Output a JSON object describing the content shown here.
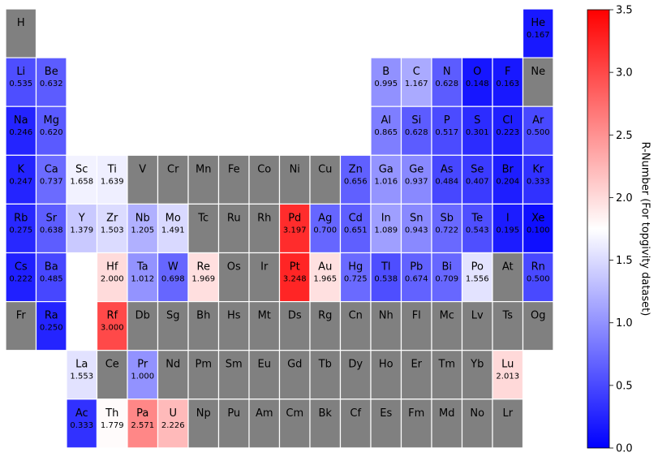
{
  "chart_data": {
    "type": "heatmap",
    "title": "",
    "colorbar": {
      "label": "R-Number (For topgivity dataset)",
      "range": [
        0.0,
        3.5
      ],
      "ticks": [
        "0.0",
        "0.5",
        "1.0",
        "1.5",
        "2.0",
        "2.5",
        "3.0",
        "3.5"
      ],
      "colormap": [
        "#0000ff",
        "#ffffff",
        "#ff0000"
      ],
      "missing_color": "#808080"
    },
    "elements": [
      {
        "symbol": "H",
        "row": 1,
        "col": 1,
        "value": null
      },
      {
        "symbol": "He",
        "row": 1,
        "col": 18,
        "value": 0.167
      },
      {
        "symbol": "Li",
        "row": 2,
        "col": 1,
        "value": 0.535
      },
      {
        "symbol": "Be",
        "row": 2,
        "col": 2,
        "value": 0.632
      },
      {
        "symbol": "B",
        "row": 2,
        "col": 13,
        "value": 0.995
      },
      {
        "symbol": "C",
        "row": 2,
        "col": 14,
        "value": 1.167
      },
      {
        "symbol": "N",
        "row": 2,
        "col": 15,
        "value": 0.628
      },
      {
        "symbol": "O",
        "row": 2,
        "col": 16,
        "value": 0.148
      },
      {
        "symbol": "F",
        "row": 2,
        "col": 17,
        "value": 0.163
      },
      {
        "symbol": "Ne",
        "row": 2,
        "col": 18,
        "value": null
      },
      {
        "symbol": "Na",
        "row": 3,
        "col": 1,
        "value": 0.246
      },
      {
        "symbol": "Mg",
        "row": 3,
        "col": 2,
        "value": 0.62
      },
      {
        "symbol": "Al",
        "row": 3,
        "col": 13,
        "value": 0.865
      },
      {
        "symbol": "Si",
        "row": 3,
        "col": 14,
        "value": 0.628
      },
      {
        "symbol": "P",
        "row": 3,
        "col": 15,
        "value": 0.517
      },
      {
        "symbol": "S",
        "row": 3,
        "col": 16,
        "value": 0.301
      },
      {
        "symbol": "Cl",
        "row": 3,
        "col": 17,
        "value": 0.223
      },
      {
        "symbol": "Ar",
        "row": 3,
        "col": 18,
        "value": 0.5
      },
      {
        "symbol": "K",
        "row": 4,
        "col": 1,
        "value": 0.247
      },
      {
        "symbol": "Ca",
        "row": 4,
        "col": 2,
        "value": 0.737
      },
      {
        "symbol": "Sc",
        "row": 4,
        "col": 3,
        "value": 1.658
      },
      {
        "symbol": "Ti",
        "row": 4,
        "col": 4,
        "value": 1.639
      },
      {
        "symbol": "V",
        "row": 4,
        "col": 5,
        "value": null
      },
      {
        "symbol": "Cr",
        "row": 4,
        "col": 6,
        "value": null
      },
      {
        "symbol": "Mn",
        "row": 4,
        "col": 7,
        "value": null
      },
      {
        "symbol": "Fe",
        "row": 4,
        "col": 8,
        "value": null
      },
      {
        "symbol": "Co",
        "row": 4,
        "col": 9,
        "value": null
      },
      {
        "symbol": "Ni",
        "row": 4,
        "col": 10,
        "value": null
      },
      {
        "symbol": "Cu",
        "row": 4,
        "col": 11,
        "value": null
      },
      {
        "symbol": "Zn",
        "row": 4,
        "col": 12,
        "value": 0.656
      },
      {
        "symbol": "Ga",
        "row": 4,
        "col": 13,
        "value": 1.016
      },
      {
        "symbol": "Ge",
        "row": 4,
        "col": 14,
        "value": 0.937
      },
      {
        "symbol": "As",
        "row": 4,
        "col": 15,
        "value": 0.484
      },
      {
        "symbol": "Se",
        "row": 4,
        "col": 16,
        "value": 0.407
      },
      {
        "symbol": "Br",
        "row": 4,
        "col": 17,
        "value": 0.204
      },
      {
        "symbol": "Kr",
        "row": 4,
        "col": 18,
        "value": 0.333
      },
      {
        "symbol": "Rb",
        "row": 5,
        "col": 1,
        "value": 0.275
      },
      {
        "symbol": "Sr",
        "row": 5,
        "col": 2,
        "value": 0.638
      },
      {
        "symbol": "Y",
        "row": 5,
        "col": 3,
        "value": 1.379
      },
      {
        "symbol": "Zr",
        "row": 5,
        "col": 4,
        "value": 1.503
      },
      {
        "symbol": "Nb",
        "row": 5,
        "col": 5,
        "value": 1.205
      },
      {
        "symbol": "Mo",
        "row": 5,
        "col": 6,
        "value": 1.491
      },
      {
        "symbol": "Tc",
        "row": 5,
        "col": 7,
        "value": null
      },
      {
        "symbol": "Ru",
        "row": 5,
        "col": 8,
        "value": null
      },
      {
        "symbol": "Rh",
        "row": 5,
        "col": 9,
        "value": null
      },
      {
        "symbol": "Pd",
        "row": 5,
        "col": 10,
        "value": 3.197
      },
      {
        "symbol": "Ag",
        "row": 5,
        "col": 11,
        "value": 0.7
      },
      {
        "symbol": "Cd",
        "row": 5,
        "col": 12,
        "value": 0.651
      },
      {
        "symbol": "In",
        "row": 5,
        "col": 13,
        "value": 1.089
      },
      {
        "symbol": "Sn",
        "row": 5,
        "col": 14,
        "value": 0.943
      },
      {
        "symbol": "Sb",
        "row": 5,
        "col": 15,
        "value": 0.722
      },
      {
        "symbol": "Te",
        "row": 5,
        "col": 16,
        "value": 0.543
      },
      {
        "symbol": "I",
        "row": 5,
        "col": 17,
        "value": 0.195
      },
      {
        "symbol": "Xe",
        "row": 5,
        "col": 18,
        "value": 0.1
      },
      {
        "symbol": "Cs",
        "row": 6,
        "col": 1,
        "value": 0.222
      },
      {
        "symbol": "Ba",
        "row": 6,
        "col": 2,
        "value": 0.485
      },
      {
        "symbol": "Hf",
        "row": 6,
        "col": 4,
        "value": 2.0
      },
      {
        "symbol": "Ta",
        "row": 6,
        "col": 5,
        "value": 1.012
      },
      {
        "symbol": "W",
        "row": 6,
        "col": 6,
        "value": 0.698
      },
      {
        "symbol": "Re",
        "row": 6,
        "col": 7,
        "value": 1.969
      },
      {
        "symbol": "Os",
        "row": 6,
        "col": 8,
        "value": null
      },
      {
        "symbol": "Ir",
        "row": 6,
        "col": 9,
        "value": null
      },
      {
        "symbol": "Pt",
        "row": 6,
        "col": 10,
        "value": 3.248
      },
      {
        "symbol": "Au",
        "row": 6,
        "col": 11,
        "value": 1.965
      },
      {
        "symbol": "Hg",
        "row": 6,
        "col": 12,
        "value": 0.725
      },
      {
        "symbol": "Tl",
        "row": 6,
        "col": 13,
        "value": 0.538
      },
      {
        "symbol": "Pb",
        "row": 6,
        "col": 14,
        "value": 0.674
      },
      {
        "symbol": "Bi",
        "row": 6,
        "col": 15,
        "value": 0.709
      },
      {
        "symbol": "Po",
        "row": 6,
        "col": 16,
        "value": 1.556
      },
      {
        "symbol": "At",
        "row": 6,
        "col": 17,
        "value": null
      },
      {
        "symbol": "Rn",
        "row": 6,
        "col": 18,
        "value": 0.5
      },
      {
        "symbol": "Fr",
        "row": 7,
        "col": 1,
        "value": null
      },
      {
        "symbol": "Ra",
        "row": 7,
        "col": 2,
        "value": 0.25
      },
      {
        "symbol": "Rf",
        "row": 7,
        "col": 4,
        "value": 3.0
      },
      {
        "symbol": "Db",
        "row": 7,
        "col": 5,
        "value": null
      },
      {
        "symbol": "Sg",
        "row": 7,
        "col": 6,
        "value": null
      },
      {
        "symbol": "Bh",
        "row": 7,
        "col": 7,
        "value": null
      },
      {
        "symbol": "Hs",
        "row": 7,
        "col": 8,
        "value": null
      },
      {
        "symbol": "Mt",
        "row": 7,
        "col": 9,
        "value": null
      },
      {
        "symbol": "Ds",
        "row": 7,
        "col": 10,
        "value": null
      },
      {
        "symbol": "Rg",
        "row": 7,
        "col": 11,
        "value": null
      },
      {
        "symbol": "Cn",
        "row": 7,
        "col": 12,
        "value": null
      },
      {
        "symbol": "Nh",
        "row": 7,
        "col": 13,
        "value": null
      },
      {
        "symbol": "Fl",
        "row": 7,
        "col": 14,
        "value": null
      },
      {
        "symbol": "Mc",
        "row": 7,
        "col": 15,
        "value": null
      },
      {
        "symbol": "Lv",
        "row": 7,
        "col": 16,
        "value": null
      },
      {
        "symbol": "Ts",
        "row": 7,
        "col": 17,
        "value": null
      },
      {
        "symbol": "Og",
        "row": 7,
        "col": 18,
        "value": null
      },
      {
        "symbol": "La",
        "row": 8,
        "col": 3,
        "value": 1.553
      },
      {
        "symbol": "Ce",
        "row": 8,
        "col": 4,
        "value": null
      },
      {
        "symbol": "Pr",
        "row": 8,
        "col": 5,
        "value": 1.0
      },
      {
        "symbol": "Nd",
        "row": 8,
        "col": 6,
        "value": null
      },
      {
        "symbol": "Pm",
        "row": 8,
        "col": 7,
        "value": null
      },
      {
        "symbol": "Sm",
        "row": 8,
        "col": 8,
        "value": null
      },
      {
        "symbol": "Eu",
        "row": 8,
        "col": 9,
        "value": null
      },
      {
        "symbol": "Gd",
        "row": 8,
        "col": 10,
        "value": null
      },
      {
        "symbol": "Tb",
        "row": 8,
        "col": 11,
        "value": null
      },
      {
        "symbol": "Dy",
        "row": 8,
        "col": 12,
        "value": null
      },
      {
        "symbol": "Ho",
        "row": 8,
        "col": 13,
        "value": null
      },
      {
        "symbol": "Er",
        "row": 8,
        "col": 14,
        "value": null
      },
      {
        "symbol": "Tm",
        "row": 8,
        "col": 15,
        "value": null
      },
      {
        "symbol": "Yb",
        "row": 8,
        "col": 16,
        "value": null
      },
      {
        "symbol": "Lu",
        "row": 8,
        "col": 17,
        "value": 2.013
      },
      {
        "symbol": "Ac",
        "row": 9,
        "col": 3,
        "value": 0.333
      },
      {
        "symbol": "Th",
        "row": 9,
        "col": 4,
        "value": 1.779
      },
      {
        "symbol": "Pa",
        "row": 9,
        "col": 5,
        "value": 2.571
      },
      {
        "symbol": "U",
        "row": 9,
        "col": 6,
        "value": 2.226
      },
      {
        "symbol": "Np",
        "row": 9,
        "col": 7,
        "value": null
      },
      {
        "symbol": "Pu",
        "row": 9,
        "col": 8,
        "value": null
      },
      {
        "symbol": "Am",
        "row": 9,
        "col": 9,
        "value": null
      },
      {
        "symbol": "Cm",
        "row": 9,
        "col": 10,
        "value": null
      },
      {
        "symbol": "Bk",
        "row": 9,
        "col": 11,
        "value": null
      },
      {
        "symbol": "Cf",
        "row": 9,
        "col": 12,
        "value": null
      },
      {
        "symbol": "Es",
        "row": 9,
        "col": 13,
        "value": null
      },
      {
        "symbol": "Fm",
        "row": 9,
        "col": 14,
        "value": null
      },
      {
        "symbol": "Md",
        "row": 9,
        "col": 15,
        "value": null
      },
      {
        "symbol": "No",
        "row": 9,
        "col": 16,
        "value": null
      },
      {
        "symbol": "Lr",
        "row": 9,
        "col": 17,
        "value": null
      }
    ]
  }
}
